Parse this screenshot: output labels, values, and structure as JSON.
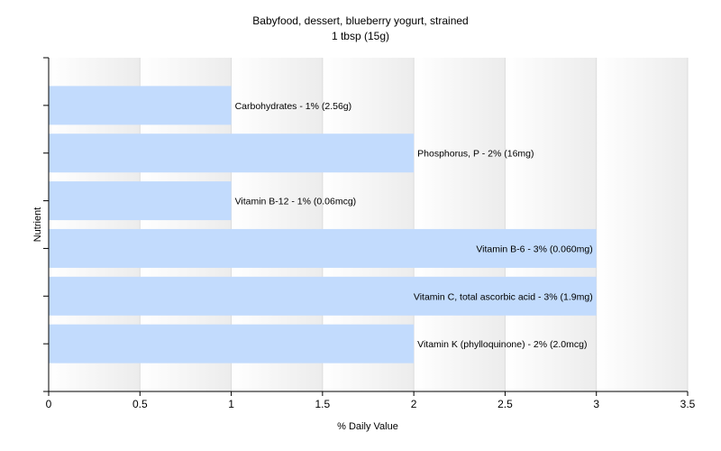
{
  "chart_data": {
    "type": "bar",
    "orientation": "horizontal",
    "title": "Babyfood, dessert, blueberry yogurt, strained",
    "subtitle": "1 tbsp (15g)",
    "xlabel": "% Daily Value",
    "ylabel": "Nutrient",
    "xlim": [
      0,
      3.5
    ],
    "xticks": [
      0,
      0.5,
      1,
      1.5,
      2,
      2.5,
      3,
      3.5
    ],
    "xtick_labels": [
      "0",
      "0.5",
      "1",
      "1.5",
      "2",
      "2.5",
      "3",
      "3.5"
    ],
    "categories": [
      "Carbohydrates",
      "Phosphorus, P",
      "Vitamin B-12",
      "Vitamin B-6",
      "Vitamin C, total ascorbic acid",
      "Vitamin K (phylloquinone)"
    ],
    "values": [
      1,
      2,
      1,
      3,
      3,
      2
    ],
    "data_labels": [
      "Carbohydrates - 1% (2.56g)",
      "Phosphorus, P - 2% (16mg)",
      "Vitamin B-12 - 1% (0.06mcg)",
      "Vitamin B-6 - 3% (0.060mg)",
      "Vitamin C, total ascorbic acid - 3% (1.9mg)",
      "Vitamin K (phylloquinone) - 2% (2.0mcg)"
    ],
    "bar_color": "#c2dbfd",
    "plot_background": "gradient white to light gray (alternating vertical bands)",
    "grid": true,
    "legend": "none"
  }
}
